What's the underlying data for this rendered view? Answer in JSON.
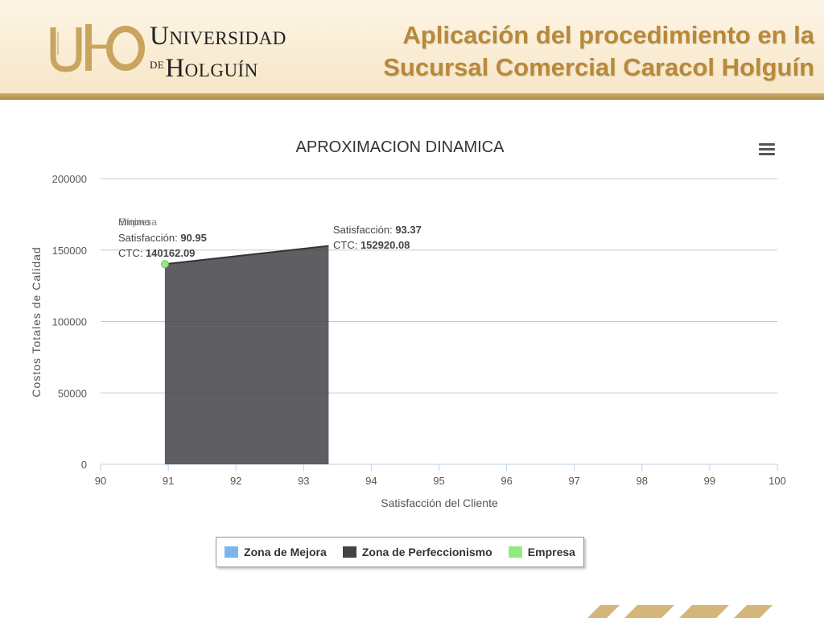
{
  "header": {
    "logo_mark": "UHO",
    "logo_line1": "Universidad",
    "logo_de": "de",
    "logo_line2": "Holguín",
    "title_line1": "Aplicación del procedimiento en la",
    "title_line2": "Sucursal Comercial Caracol Holguín"
  },
  "colors": {
    "accent": "#b8893a",
    "zona_mejora": "#7cb5ec",
    "zona_perfeccionismo": "#434348",
    "empresa": "#90ed7d"
  },
  "menu_icon": "hamburger-menu-icon",
  "chart_data": {
    "type": "area",
    "title": "APROXIMACION DINAMICA",
    "xlabel": "Satisfacción del Cliente",
    "ylabel": "Costos Totales de Calidad",
    "xlim": [
      90,
      100
    ],
    "ylim": [
      0,
      200000
    ],
    "x_ticks": [
      90,
      91,
      92,
      93,
      94,
      95,
      96,
      97,
      98,
      99,
      100
    ],
    "y_ticks": [
      0,
      50000,
      100000,
      150000,
      200000
    ],
    "grid": true,
    "legend_position": "bottom-center",
    "series": [
      {
        "name": "Zona de Mejora",
        "points": []
      },
      {
        "name": "Zona de Perfeccionismo",
        "points": [
          {
            "x": 90.95,
            "y": 140162.09
          },
          {
            "x": 93.37,
            "y": 152920.08
          }
        ]
      },
      {
        "name": "Empresa",
        "points": [
          {
            "x": 90.95,
            "y": 140162.09
          }
        ]
      }
    ],
    "annotations": [
      {
        "header1": "Mínimo",
        "header2": "Empresa",
        "sat_label": "Satisfacción:",
        "sat_value": "90.95",
        "ctc_label": "CTC:",
        "ctc_value": "140162.09"
      },
      {
        "sat_label": "Satisfacción:",
        "sat_value": "93.37",
        "ctc_label": "CTC:",
        "ctc_value": "152920.08"
      }
    ]
  }
}
